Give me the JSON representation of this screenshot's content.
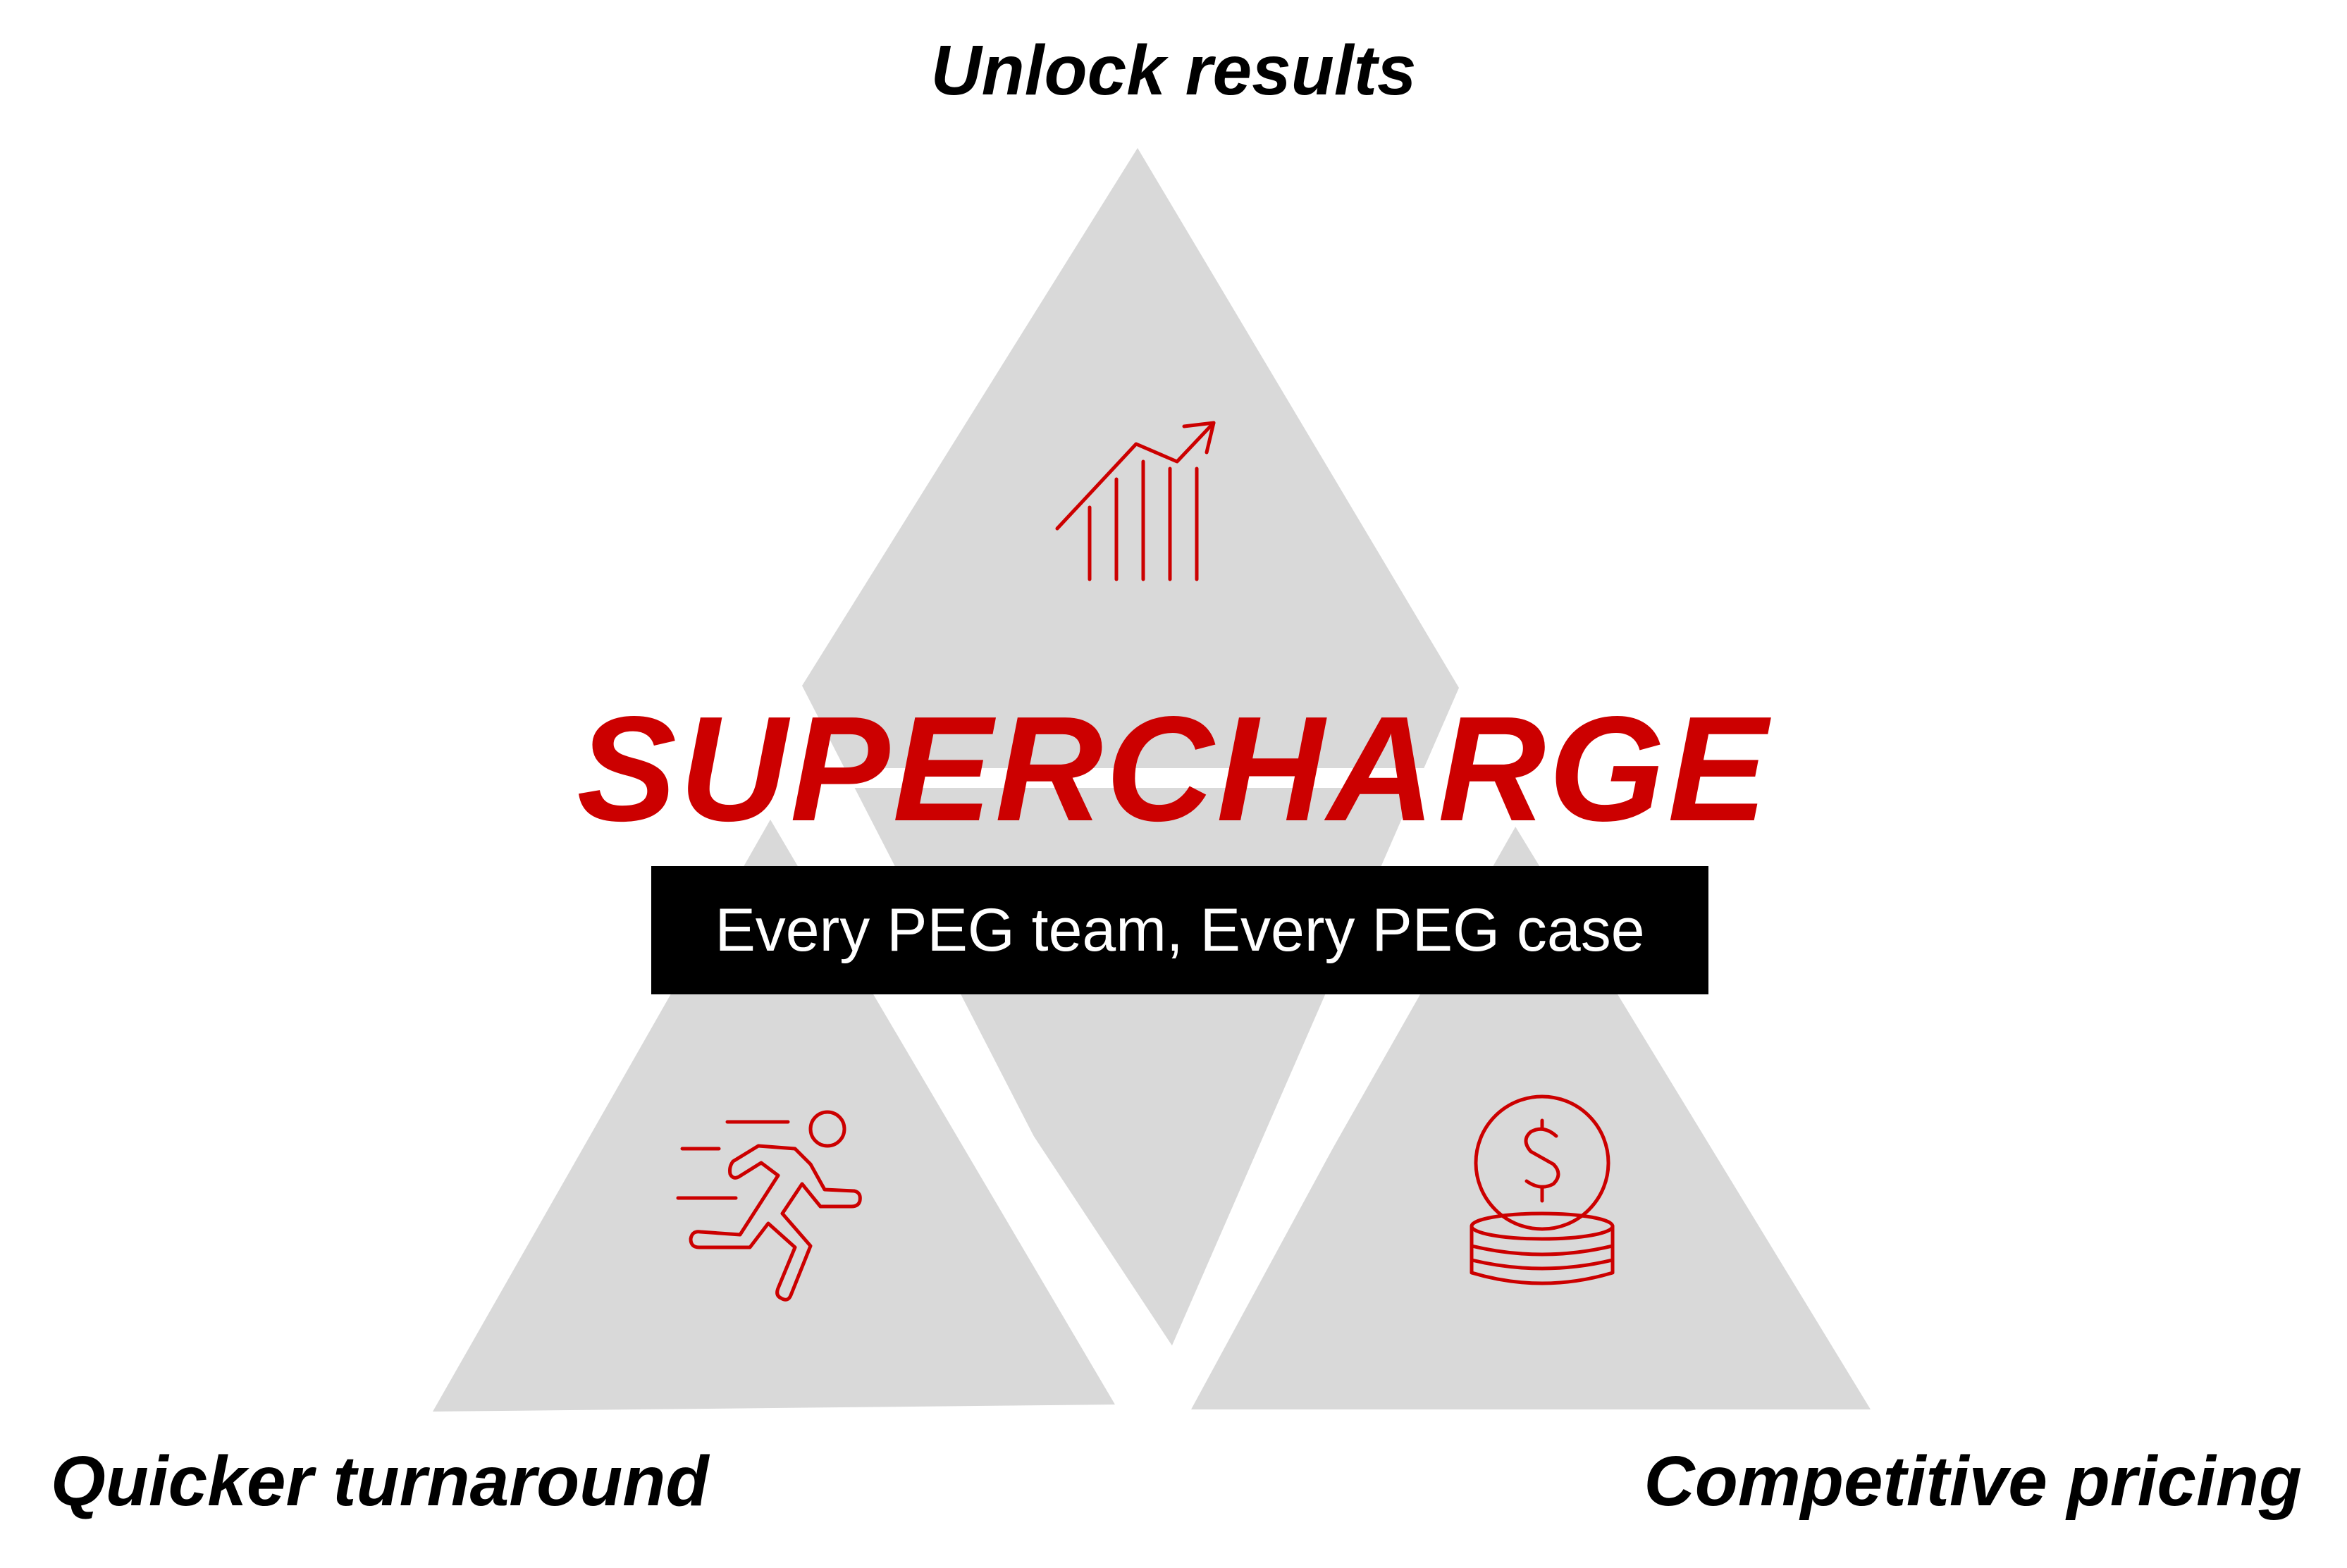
{
  "colors": {
    "triangle_fill": "#d9d9d9",
    "accent": "#cc0000",
    "label_text": "#000000",
    "banner_bg": "#000000",
    "banner_text": "#ffffff"
  },
  "diagram": {
    "headline": "SUPERCHARGE",
    "subtitle": "Every PEG team, Every PEG case",
    "nodes": {
      "top": {
        "label": "Unlock results",
        "icon": "growth-chart-icon"
      },
      "left": {
        "label": "Quicker turnaround",
        "icon": "running-person-icon"
      },
      "right": {
        "label": "Competitive pricing",
        "icon": "dollar-coins-icon"
      }
    }
  }
}
